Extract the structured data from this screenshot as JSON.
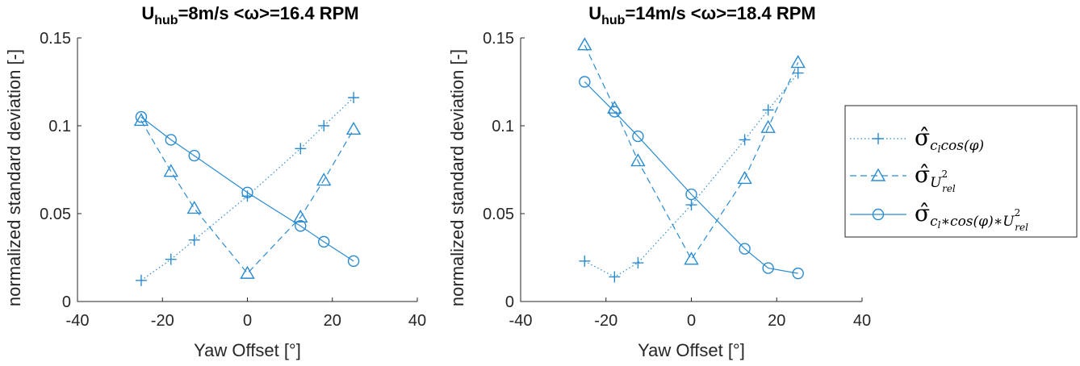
{
  "colors": {
    "series": "#2a8bd1",
    "axis": "#262626",
    "title": "#000000"
  },
  "legend": {
    "entries": [
      {
        "marker": "plus",
        "line": "dotted",
        "label": "σ̂ c_l cos(φ)"
      },
      {
        "marker": "triangle",
        "line": "dashed",
        "label": "σ̂ U_rel^2"
      },
      {
        "marker": "circle",
        "line": "solid",
        "label": "σ̂ c_l*cos(φ)*U_rel^2"
      }
    ]
  },
  "chart_data": [
    {
      "type": "line",
      "title": {
        "prefix": "U",
        "sub": "hub",
        "rest": "=8m/s <ω>=16.4 RPM"
      },
      "xlabel": "Yaw Offset [°]",
      "ylabel": "normalized standard deviation [-]",
      "xlim": [
        -40,
        40
      ],
      "ylim": [
        0,
        0.15
      ],
      "xticks": [
        -40,
        -20,
        0,
        20,
        40
      ],
      "xtick_labels": [
        "-40",
        "-20",
        "0",
        "20",
        "40"
      ],
      "yticks": [
        0,
        0.05,
        0.1,
        0.15
      ],
      "ytick_labels": [
        "0",
        "0.05",
        "0.1",
        "0.15"
      ],
      "x": [
        -25,
        -18,
        -12.5,
        0,
        12.5,
        18,
        25
      ],
      "series": [
        {
          "legend_index": 0,
          "marker": "plus",
          "line": "dotted",
          "values": [
            0.012,
            0.024,
            0.035,
            0.06,
            0.087,
            0.1,
            0.116
          ]
        },
        {
          "legend_index": 1,
          "marker": "triangle",
          "line": "dashed",
          "values": [
            0.103,
            0.074,
            0.053,
            0.016,
            0.048,
            0.069,
            0.098
          ]
        },
        {
          "legend_index": 2,
          "marker": "circle",
          "line": "solid",
          "values": [
            0.105,
            0.092,
            0.083,
            0.062,
            0.043,
            0.034,
            0.023
          ]
        }
      ]
    },
    {
      "type": "line",
      "title": {
        "prefix": "U",
        "sub": "hub",
        "rest": "=14m/s <ω>=18.4 RPM"
      },
      "xlabel": "Yaw Offset [°]",
      "ylabel": "normalized standard deviation [-]",
      "xlim": [
        -40,
        40
      ],
      "ylim": [
        0,
        0.15
      ],
      "xticks": [
        -40,
        -20,
        0,
        20,
        40
      ],
      "xtick_labels": [
        "-40",
        "-20",
        "0",
        "20",
        "40"
      ],
      "yticks": [
        0,
        0.05,
        0.1,
        0.15
      ],
      "ytick_labels": [
        "0",
        "0.05",
        "0.1",
        "0.15"
      ],
      "x": [
        -25,
        -18,
        -12.5,
        0,
        12.5,
        18,
        25
      ],
      "series": [
        {
          "legend_index": 0,
          "marker": "plus",
          "line": "dotted",
          "values": [
            0.023,
            0.014,
            0.022,
            0.055,
            0.092,
            0.109,
            0.13
          ]
        },
        {
          "legend_index": 1,
          "marker": "triangle",
          "line": "dashed",
          "values": [
            0.146,
            0.11,
            0.08,
            0.024,
            0.07,
            0.099,
            0.136
          ]
        },
        {
          "legend_index": 2,
          "marker": "circle",
          "line": "solid",
          "values": [
            0.125,
            0.108,
            0.094,
            0.061,
            0.03,
            0.019,
            0.016
          ]
        }
      ]
    }
  ]
}
